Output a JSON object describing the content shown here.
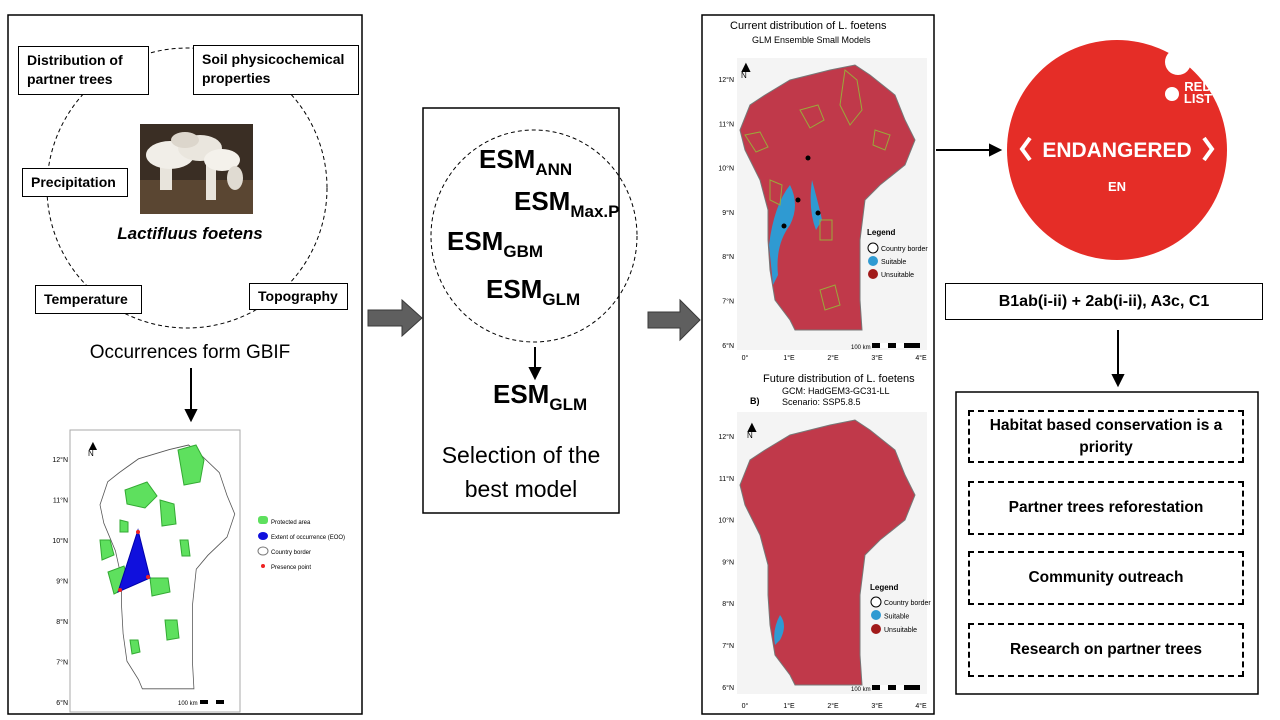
{
  "factors_panel": {
    "factors": [
      "Distribution of partner trees",
      "Soil physicochemical properties",
      "Precipitation",
      "Temperature",
      "Topography"
    ],
    "species": "Lactifluus foetens",
    "source": "Occurrences form GBIF",
    "eoo_map": {
      "lat_labels": [
        "12°N",
        "11°N",
        "10°N",
        "9°N",
        "8°N",
        "7°N",
        "6°N"
      ],
      "legend": [
        "Protected area",
        "Extent of occurrence (EOO)",
        "Country border",
        "Presence point"
      ],
      "scale": "100 km"
    }
  },
  "model_panel": {
    "candidates": [
      {
        "base": "ESM",
        "sub": "ANN"
      },
      {
        "base": "ESM",
        "sub": "Max.P"
      },
      {
        "base": "ESM",
        "sub": "GBM"
      },
      {
        "base": "ESM",
        "sub": "GLM"
      }
    ],
    "selected": {
      "base": "ESM",
      "sub": "GLM"
    },
    "caption_lines": [
      "Selection of the",
      "best model"
    ]
  },
  "distribution_panel": {
    "current": {
      "title": "Current distribution of L. foetens",
      "subtitle": "GLM Ensemble Small Models",
      "lat_labels": [
        "12°N",
        "11°N",
        "10°N",
        "9°N",
        "8°N",
        "7°N",
        "6°N"
      ],
      "lon_labels": [
        "0°",
        "1°E",
        "2°E",
        "3°E",
        "4°E"
      ],
      "legend_title": "Legend",
      "legend": [
        "Country border",
        "Suitable",
        "Unsuitable"
      ],
      "scale": "100 km"
    },
    "future": {
      "title": "Future distribution of L. foetens",
      "panel_label": "B)",
      "gcm": "GCM: HadGEM3-GC31-LL",
      "scenario": "Scenario: SSP5.8.5",
      "lat_labels": [
        "12°N",
        "11°N",
        "10°N",
        "9°N",
        "8°N",
        "7°N",
        "6°N"
      ],
      "lon_labels": [
        "0°",
        "1°E",
        "2°E",
        "3°E",
        "4°E"
      ],
      "legend_title": "Legend",
      "legend": [
        "Country border",
        "Suitable",
        "Unsuitable"
      ],
      "scale": "100 km"
    }
  },
  "assessment_panel": {
    "logo_text": [
      "RED",
      "LIST"
    ],
    "category": "ENDANGERED",
    "code": "EN",
    "criteria": "B1ab(i-ii) + 2ab(i-ii), A3c, C1",
    "actions": [
      "Habitat based conservation is a priority",
      "Partner trees reforestation",
      "Community outreach",
      "Research on partner trees"
    ]
  }
}
